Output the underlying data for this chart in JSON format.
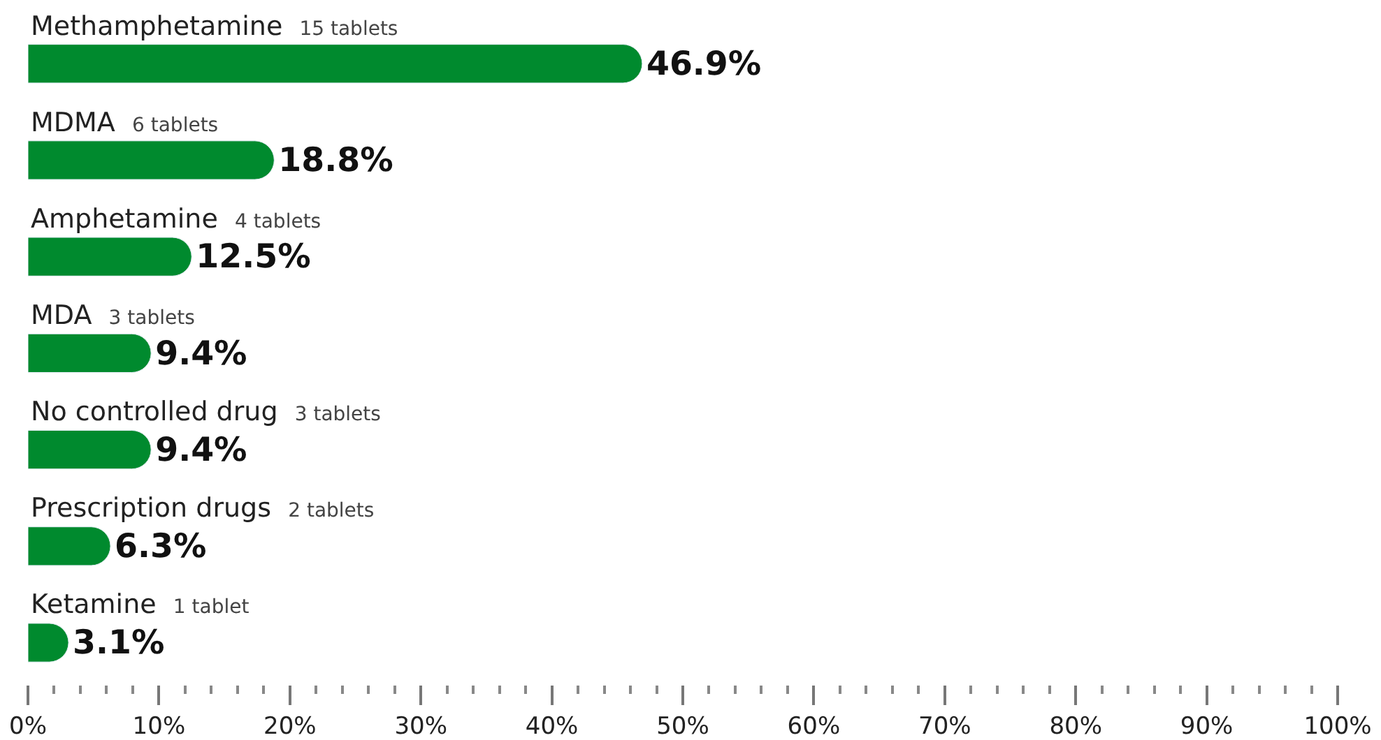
{
  "chart_data": {
    "type": "bar",
    "orientation": "horizontal",
    "categories": [
      "Methamphetamine",
      "MDMA",
      "Amphetamine",
      "MDA",
      "No controlled drug",
      "Prescription drugs",
      "Ketamine"
    ],
    "values": [
      46.9,
      18.8,
      12.5,
      9.4,
      9.4,
      6.3,
      3.1
    ],
    "value_labels": [
      "46.9%",
      "18.8%",
      "12.5%",
      "9.4%",
      "9.4%",
      "6.3%",
      "3.1%"
    ],
    "color": "#008a2e",
    "xlim": [
      0,
      100
    ],
    "xticks": [
      {
        "value": 0,
        "label": "0%"
      },
      {
        "value": 10,
        "label": "10%"
      },
      {
        "value": 20,
        "label": "20%"
      },
      {
        "value": 30,
        "label": "30%"
      },
      {
        "value": 40,
        "label": "40%"
      },
      {
        "value": 50,
        "label": "50%"
      },
      {
        "value": 60,
        "label": "60%"
      },
      {
        "value": 70,
        "label": "70%"
      },
      {
        "value": 80,
        "label": "80%"
      },
      {
        "value": 90,
        "label": "90%"
      },
      {
        "value": 100,
        "label": "100%"
      }
    ],
    "annotations": [
      "15 tablets",
      "6 tablets",
      "4 tablets",
      "3 tablets",
      "3 tablets",
      "2 tablets",
      "1 tablet"
    ]
  }
}
